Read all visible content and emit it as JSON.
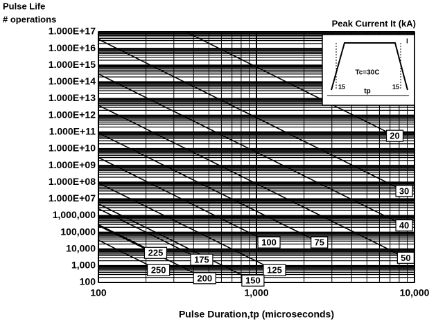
{
  "chart_data": {
    "type": "line",
    "title": "Pulse Life",
    "ylabel": "# operations",
    "xlabel": "Pulse Duration,tp (microseconds)",
    "legend_title": "Peak Current  It (kA)",
    "inset": {
      "temp": "Tc=30C",
      "width": "tp",
      "rise": "15",
      "fall": "15",
      "current": "I"
    },
    "log_x": true,
    "log_y": true,
    "grid": true,
    "color": "#000000",
    "xlim": [
      100,
      10000
    ],
    "xticks": [
      100,
      {
        "value": 1000,
        "label": "1,000"
      },
      {
        "value": 10000,
        "label": "10,000"
      }
    ],
    "ylim": [
      100,
      1e+17
    ],
    "yticks": [
      100,
      {
        "value": 1000,
        "label": "1,000"
      },
      {
        "value": 10000,
        "label": "10,000"
      },
      {
        "value": 100000,
        "label": "100,000"
      },
      {
        "value": 1000000,
        "label": "1,000,000"
      },
      {
        "value": 10000000.0,
        "label": "1.000E+07"
      },
      {
        "value": 100000000.0,
        "label": "1.000E+08"
      },
      {
        "value": 1000000000.0,
        "label": "1.000E+09"
      },
      {
        "value": 10000000000.0,
        "label": "1.000E+10"
      },
      {
        "value": 100000000000.0,
        "label": "1.000E+11"
      },
      {
        "value": 1000000000000.0,
        "label": "1.000E+12"
      },
      {
        "value": 10000000000000.0,
        "label": "1.000E+13"
      },
      {
        "value": 100000000000000.0,
        "label": "1.000E+14"
      },
      {
        "value": 1000000000000000.0,
        "label": "1.000E+15"
      },
      {
        "value": 1e+16,
        "label": "1.000E+16"
      },
      {
        "value": 1e+17,
        "label": "1.000E+17"
      }
    ],
    "series": [
      {
        "name": "20",
        "x": [
          100,
          7500
        ],
        "values": [
          4e+19,
          60000000000.0
        ]
      },
      {
        "name": "30",
        "x": [
          100,
          8600
        ],
        "values": [
          3.6e+16,
          30000000.0
        ]
      },
      {
        "name": "40",
        "x": [
          100,
          8600
        ],
        "values": [
          300000000000000.0,
          260000
        ]
      },
      {
        "name": "50",
        "x": [
          100,
          8800
        ],
        "values": [
          4000000000000.0,
          3000
        ]
      },
      {
        "name": "75",
        "x": [
          100,
          2500
        ],
        "values": [
          90000000000.0,
          25000
        ]
      },
      {
        "name": "100",
        "x": [
          100,
          1200
        ],
        "values": [
          3000000000.0,
          25000
        ]
      },
      {
        "name": "125",
        "x": [
          100,
          1300
        ],
        "values": [
          90000000.0,
          550
        ]
      },
      {
        "name": "150",
        "x": [
          100,
          950
        ],
        "values": [
          5000000.0,
          130
        ]
      },
      {
        "name": "175",
        "x": [
          100,
          450
        ],
        "values": [
          2600000.0,
          2300
        ]
      },
      {
        "name": "200",
        "x": [
          100,
          470
        ],
        "values": [
          250000,
          180
        ]
      },
      {
        "name": "225",
        "x": [
          100,
          230
        ],
        "values": [
          290000,
          5900
        ]
      },
      {
        "name": "250",
        "x": [
          100,
          240
        ],
        "values": [
          34000,
          550
        ]
      }
    ]
  }
}
